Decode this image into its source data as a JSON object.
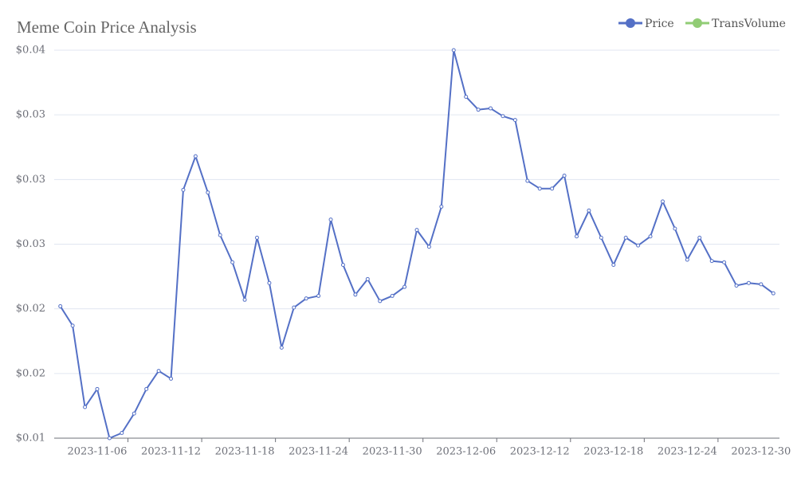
{
  "chart_data": {
    "type": "line",
    "title": "Meme Coin Price Analysis",
    "categories": [
      null,
      null,
      null,
      "2023-11-06",
      null,
      null,
      null,
      null,
      null,
      "2023-11-12",
      null,
      null,
      null,
      null,
      null,
      "2023-11-18",
      null,
      null,
      null,
      null,
      null,
      "2023-11-24",
      null,
      null,
      null,
      null,
      null,
      "2023-11-30",
      null,
      null,
      null,
      null,
      null,
      "2023-12-06",
      null,
      null,
      null,
      null,
      null,
      "2023-12-12",
      null,
      null,
      null,
      null,
      null,
      "2023-12-18",
      null,
      null,
      null,
      null,
      null,
      "2023-12-24",
      null,
      null,
      null,
      null,
      null,
      "2023-12-30",
      null
    ],
    "series": [
      {
        "name": "Price",
        "color": "#5470c6",
        "values": [
          0.0202,
          0.0187,
          0.0124,
          0.0138,
          0.01,
          0.0104,
          0.0119,
          0.0138,
          0.0152,
          0.0146,
          0.0292,
          0.0318,
          0.029,
          0.0257,
          0.0236,
          0.0207,
          0.0255,
          0.022,
          0.017,
          0.0201,
          0.0208,
          0.021,
          0.0269,
          0.0234,
          0.0211,
          0.0223,
          0.0206,
          0.021,
          0.0217,
          0.0261,
          0.0248,
          0.0279,
          0.04,
          0.0364,
          0.0354,
          0.0355,
          0.0349,
          0.0346,
          0.0299,
          0.0293,
          0.0293,
          0.0303,
          0.0256,
          0.0276,
          0.0255,
          0.0234,
          0.0255,
          0.0249,
          0.0256,
          0.0283,
          0.0262,
          0.0238,
          0.0255,
          0.0237,
          0.0236,
          0.0218,
          0.022,
          0.0219,
          0.0212
        ]
      },
      {
        "name": "TransVolume",
        "color": "#91cc75",
        "values": [
          null,
          null,
          null,
          null,
          null,
          null,
          null,
          null,
          null,
          null,
          null,
          null,
          null,
          null,
          null,
          null,
          null,
          null,
          null,
          null,
          null,
          null,
          null,
          null,
          null,
          null,
          null,
          null,
          null,
          null,
          null,
          null,
          null,
          null,
          null,
          null,
          null,
          null,
          null,
          null,
          null,
          null,
          null,
          null,
          null,
          null,
          null,
          null,
          null,
          null,
          null,
          null,
          null,
          null,
          null,
          null,
          null,
          null,
          null
        ]
      }
    ],
    "ylim": [
      0.01,
      0.04
    ],
    "yticks": [
      {
        "value": 0.01,
        "label": "$0.01"
      },
      {
        "value": 0.015,
        "label": "$0.02"
      },
      {
        "value": 0.02,
        "label": "$0.02"
      },
      {
        "value": 0.025,
        "label": "$0.03"
      },
      {
        "value": 0.03,
        "label": "$0.03"
      },
      {
        "value": 0.035,
        "label": "$0.03"
      },
      {
        "value": 0.04,
        "label": "$0.04"
      }
    ],
    "grid": true,
    "legend": "top-right"
  }
}
